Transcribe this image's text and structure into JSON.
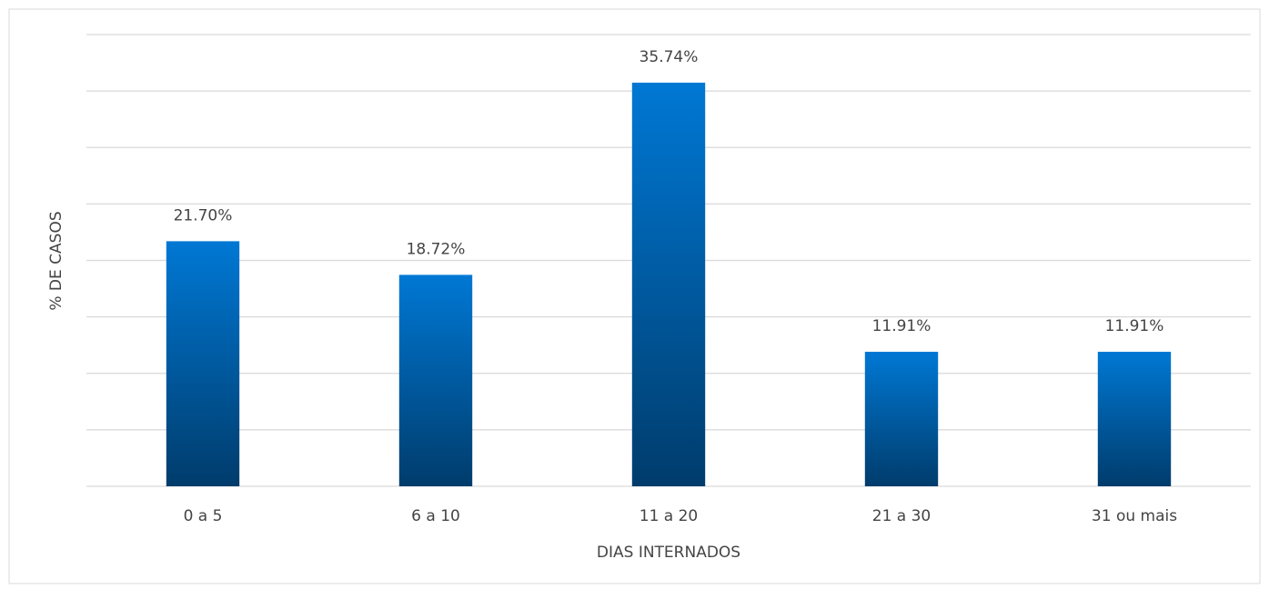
{
  "chart_data": {
    "type": "bar",
    "x_label": "DIAS INTERNADOS",
    "y_label": "% DE CASOS",
    "categories": [
      "0 a 5",
      "6 a 10",
      "11 a 20",
      "21 a 30",
      "31 ou mais"
    ],
    "values": [
      21.7,
      18.72,
      35.74,
      11.91,
      11.91
    ],
    "value_labels": [
      "21.70%",
      "18.72%",
      "35.74%",
      "11.91%",
      "11.91%"
    ],
    "color": "#0078d4",
    "ylim": [
      0,
      40
    ],
    "yticks": [
      0,
      5,
      10,
      15,
      20,
      25,
      30,
      35,
      40
    ],
    "grid": true
  }
}
